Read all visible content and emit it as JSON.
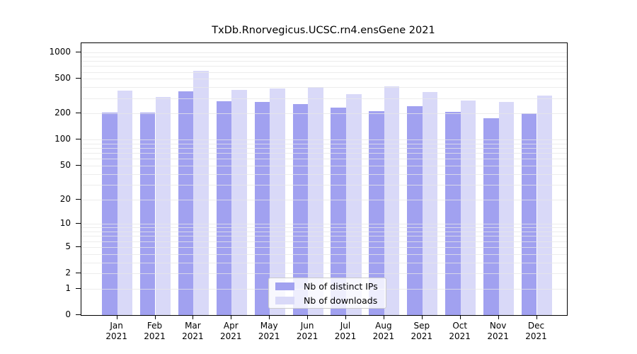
{
  "chart_data": {
    "type": "bar",
    "title": "TxDb.Rnorvegicus.UCSC.rn4.ensGene 2021",
    "months": [
      "Jan",
      "Feb",
      "Mar",
      "Apr",
      "May",
      "Jun",
      "Jul",
      "Aug",
      "Sep",
      "Oct",
      "Nov",
      "Dec"
    ],
    "year": "2021",
    "series": [
      {
        "name": "Nb of distinct IPs",
        "color": "#a1a1f0",
        "values": [
          205,
          204,
          360,
          275,
          270,
          256,
          234,
          212,
          242,
          208,
          178,
          200
        ]
      },
      {
        "name": "Nb of downloads",
        "color": "#d9d9f8",
        "values": [
          368,
          311,
          621,
          371,
          388,
          400,
          331,
          408,
          351,
          284,
          272,
          321
        ]
      }
    ],
    "yticks": [
      0,
      1,
      2,
      5,
      10,
      20,
      50,
      100,
      200,
      500,
      1000
    ],
    "ylim": [
      0,
      1000
    ],
    "scale": "log10(1+v)",
    "grid": true,
    "gridline_values": [
      1,
      2,
      3,
      4,
      5,
      6,
      7,
      8,
      9,
      10,
      20,
      30,
      40,
      50,
      60,
      70,
      80,
      90,
      100,
      200,
      300,
      400,
      500,
      600,
      700,
      800,
      900,
      1000
    ],
    "legend_position": "bottom-center",
    "colors": {
      "bar_dark": "#a1a1f0",
      "bar_light": "#d9d9f8",
      "axis": "#000000",
      "grid": "#e7e7e7"
    }
  }
}
